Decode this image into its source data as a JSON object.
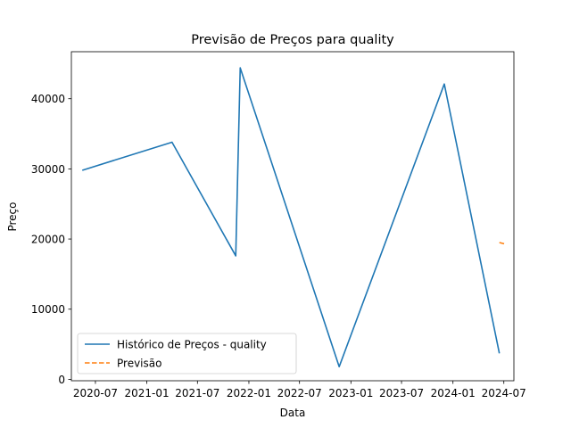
{
  "chart_data": {
    "type": "line",
    "title": "Previsão de Preços para quality",
    "xlabel": "Data",
    "ylabel": "Preço",
    "x_ticks": [
      "2020-07",
      "2021-01",
      "2021-07",
      "2022-01",
      "2022-07",
      "2023-01",
      "2023-07",
      "2024-01",
      "2024-07"
    ],
    "y_ticks": [
      0,
      10000,
      20000,
      30000,
      40000
    ],
    "xlim": [
      "2020-04-06",
      "2024-08-06"
    ],
    "ylim": [
      -200,
      46700
    ],
    "grid": false,
    "legend_position": "lower-left",
    "series": [
      {
        "name": "Histórico de Preços - quality",
        "color": "#1f77b4",
        "style": "solid",
        "points": [
          {
            "x": "2020-05-15",
            "y": 29800
          },
          {
            "x": "2021-04-01",
            "y": 33800
          },
          {
            "x": "2021-11-15",
            "y": 17600
          },
          {
            "x": "2021-12-01",
            "y": 44400
          },
          {
            "x": "2022-11-20",
            "y": 1800
          },
          {
            "x": "2023-12-01",
            "y": 42100
          },
          {
            "x": "2024-06-15",
            "y": 3700
          }
        ]
      },
      {
        "name": "Previsão",
        "color": "#ff7f0e",
        "style": "dashed",
        "points": [
          {
            "x": "2024-06-15",
            "y": 19500
          },
          {
            "x": "2024-07-05",
            "y": 19300
          }
        ]
      }
    ]
  }
}
